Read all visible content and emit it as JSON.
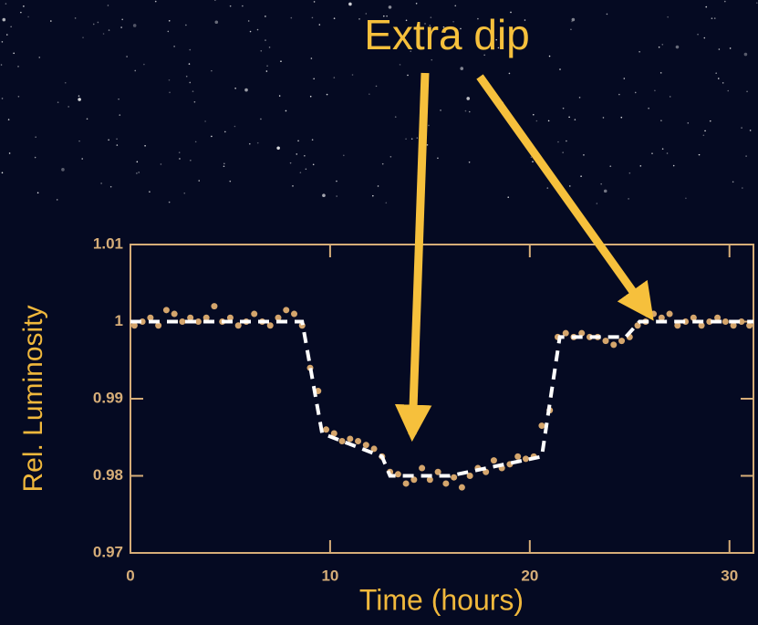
{
  "chart_data": {
    "type": "scatter",
    "annotation": "Extra dip",
    "xlabel": "Time (hours)",
    "ylabel": "Rel. Luminosity",
    "xlim": [
      0,
      31.2
    ],
    "ylim": [
      0.97,
      1.01
    ],
    "xticks": [
      0,
      10,
      20,
      30
    ],
    "yticks": [
      0.97,
      0.98,
      0.99,
      1,
      1.01
    ],
    "series": [
      {
        "color": "#d4a56c",
        "style": "points",
        "x": [
          0.2,
          0.6,
          1.0,
          1.4,
          1.8,
          2.2,
          2.6,
          3.0,
          3.4,
          3.8,
          4.2,
          4.6,
          5.0,
          5.4,
          5.8,
          6.2,
          6.6,
          7.0,
          7.4,
          7.8,
          8.2,
          8.6,
          9.0,
          9.4,
          9.8,
          10.2,
          10.6,
          11.0,
          11.4,
          11.8,
          12.2,
          12.6,
          13.0,
          13.4,
          13.8,
          14.2,
          14.6,
          15.0,
          15.4,
          15.8,
          16.2,
          16.6,
          17.0,
          17.4,
          17.8,
          18.2,
          18.6,
          19.0,
          19.4,
          19.8,
          20.2,
          20.6,
          21.0,
          21.4,
          21.8,
          22.2,
          22.6,
          23.0,
          23.4,
          23.8,
          24.2,
          24.6,
          25.0,
          25.4,
          25.8,
          26.2,
          26.6,
          27.0,
          27.4,
          27.8,
          28.2,
          28.6,
          29.0,
          29.4,
          29.8,
          30.2,
          30.6,
          31.0
        ],
        "values": [
          0.9995,
          1.0,
          1.0005,
          0.9995,
          1.0015,
          1.001,
          1.0,
          1.0005,
          1.0,
          1.0005,
          1.002,
          1.0,
          1.0005,
          0.9995,
          1.0,
          1.001,
          1.0,
          0.9995,
          1.0005,
          1.0015,
          1.001,
          0.9995,
          0.994,
          0.991,
          0.986,
          0.9855,
          0.9845,
          0.9848,
          0.9845,
          0.984,
          0.9835,
          0.9825,
          0.9805,
          0.9802,
          0.979,
          0.9795,
          0.981,
          0.9795,
          0.9805,
          0.979,
          0.9798,
          0.9785,
          0.98,
          0.981,
          0.9805,
          0.982,
          0.981,
          0.9815,
          0.9825,
          0.9822,
          0.9825,
          0.9865,
          0.9885,
          0.998,
          0.9985,
          0.998,
          0.9985,
          0.998,
          0.998,
          0.9975,
          0.997,
          0.9975,
          0.998,
          0.9995,
          1.0,
          1.001,
          1.0005,
          1.001,
          0.9995,
          1.0,
          1.0005,
          0.9995,
          1.0,
          1.0005,
          1.0,
          0.9995,
          1.0,
          0.9995
        ]
      },
      {
        "color": "#ffffff",
        "style": "dashed",
        "x": [
          0,
          8.6,
          9.6,
          12.6,
          13.0,
          16.0,
          20.6,
          21.5,
          24.8,
          25.5,
          31.2
        ],
        "values": [
          1.0,
          1.0,
          0.9855,
          0.9825,
          0.98,
          0.98,
          0.9825,
          0.998,
          0.998,
          1.0,
          1.0
        ]
      }
    ]
  }
}
